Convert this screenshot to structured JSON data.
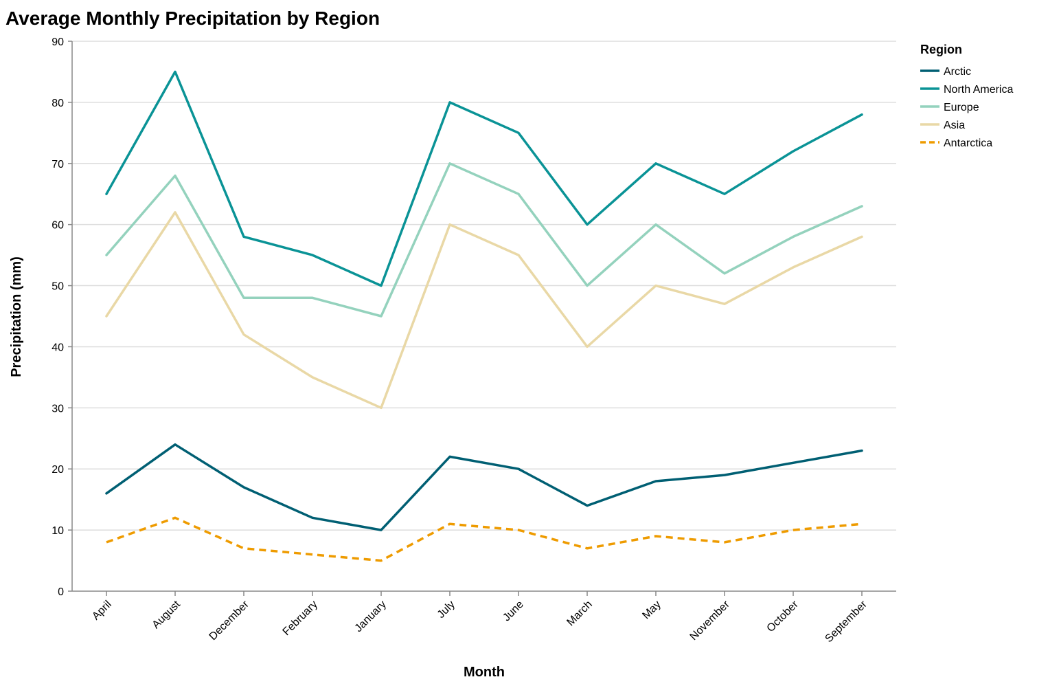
{
  "chart_data": {
    "type": "line",
    "title": "Average Monthly Precipitation by Region",
    "xlabel": "Month",
    "ylabel": "Precipitation (mm)",
    "ylim": [
      0,
      90
    ],
    "yticks": [
      0,
      10,
      20,
      30,
      40,
      50,
      60,
      70,
      80,
      90
    ],
    "grid": true,
    "legend": {
      "title": "Region",
      "position": "top-right"
    },
    "categories": [
      "April",
      "August",
      "December",
      "February",
      "January",
      "July",
      "June",
      "March",
      "May",
      "November",
      "October",
      "September"
    ],
    "series": [
      {
        "name": "Arctic",
        "color": "#005f73",
        "dashed": false,
        "values": [
          16,
          24,
          17,
          12,
          10,
          22,
          20,
          14,
          18,
          19,
          21,
          23
        ]
      },
      {
        "name": "North America",
        "color": "#0a9396",
        "dashed": false,
        "values": [
          65,
          85,
          58,
          55,
          50,
          80,
          75,
          60,
          70,
          65,
          72,
          78
        ]
      },
      {
        "name": "Europe",
        "color": "#94d2bd",
        "dashed": false,
        "values": [
          55,
          68,
          48,
          48,
          45,
          70,
          65,
          50,
          60,
          52,
          58,
          63
        ]
      },
      {
        "name": "Asia",
        "color": "#e9d8a6",
        "dashed": false,
        "values": [
          45,
          62,
          42,
          35,
          30,
          60,
          55,
          40,
          50,
          47,
          53,
          58
        ]
      },
      {
        "name": "Antarctica",
        "color": "#ee9b00",
        "dashed": true,
        "values": [
          8,
          12,
          7,
          6,
          5,
          11,
          10,
          7,
          9,
          8,
          10,
          11
        ]
      }
    ]
  }
}
